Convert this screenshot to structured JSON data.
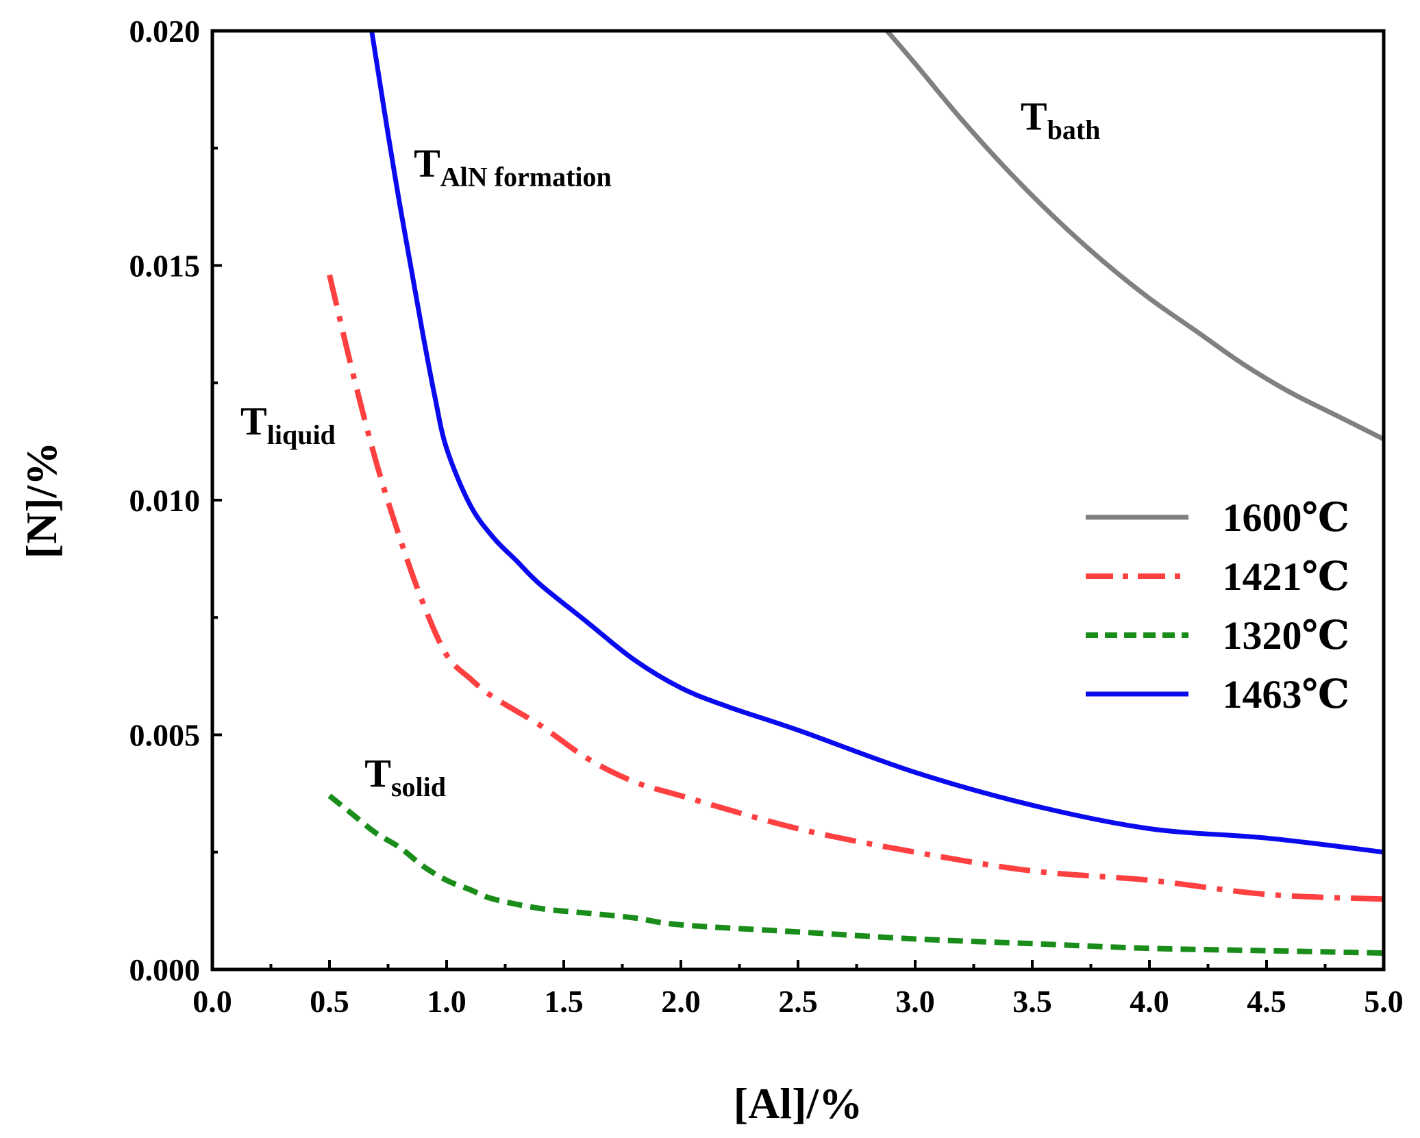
{
  "chart_data": {
    "type": "line",
    "xlabel": "[Al]/%",
    "ylabel": "[N]/%",
    "xlim": [
      0.0,
      5.0
    ],
    "ylim": [
      0.0,
      0.02
    ],
    "x_ticks": [
      "0.0",
      "0.5",
      "1.0",
      "1.5",
      "2.0",
      "2.5",
      "3.0",
      "3.5",
      "4.0",
      "4.5",
      "5.0"
    ],
    "y_ticks": [
      "0.000",
      "0.005",
      "0.010",
      "0.015",
      "0.020"
    ],
    "grid": false,
    "legend_position": "right",
    "series": [
      {
        "name": "1600℃",
        "color": "#808080",
        "style": "solid",
        "x": [
          2.88,
          3.0,
          3.2,
          3.4,
          3.6,
          3.8,
          4.0,
          4.2,
          4.4,
          4.6,
          4.8,
          5.0
        ],
        "y": [
          0.02,
          0.0193,
          0.0181,
          0.017,
          0.016,
          0.0151,
          0.0143,
          0.0136,
          0.0129,
          0.0123,
          0.0118,
          0.0113
        ]
      },
      {
        "name": "1421℃",
        "color": "#ff4040",
        "style": "dashdot",
        "x": [
          0.5,
          0.6,
          0.7,
          0.8,
          0.9,
          1.0,
          1.1,
          1.2,
          1.4,
          1.6,
          1.8,
          2.0,
          2.5,
          3.0,
          3.5,
          4.0,
          4.5,
          5.0
        ],
        "y": [
          0.0148,
          0.0127,
          0.0108,
          0.0092,
          0.0078,
          0.0067,
          0.0062,
          0.0058,
          0.0052,
          0.0045,
          0.004,
          0.0037,
          0.003,
          0.0025,
          0.0021,
          0.0019,
          0.0016,
          0.0015
        ]
      },
      {
        "name": "1320℃",
        "color": "#1a8c1a",
        "style": "dashed",
        "x": [
          0.5,
          0.6,
          0.7,
          0.8,
          0.9,
          1.0,
          1.1,
          1.2,
          1.4,
          1.6,
          1.8,
          2.0,
          2.5,
          3.0,
          3.5,
          4.0,
          4.5,
          5.0
        ],
        "y": [
          0.0037,
          0.0033,
          0.0029,
          0.0026,
          0.0022,
          0.0019,
          0.0017,
          0.0015,
          0.0013,
          0.0012,
          0.0011,
          0.00095,
          0.0008,
          0.00065,
          0.00055,
          0.00045,
          0.0004,
          0.00035
        ]
      },
      {
        "name": "1463℃",
        "color": "#0a0aee",
        "style": "solid",
        "x": [
          0.68,
          0.75,
          0.8,
          0.85,
          0.9,
          0.95,
          1.0,
          1.1,
          1.2,
          1.3,
          1.4,
          1.6,
          1.8,
          2.0,
          2.2,
          2.5,
          3.0,
          3.5,
          4.0,
          4.5,
          5.0
        ],
        "y": [
          0.02,
          0.0178,
          0.0163,
          0.0149,
          0.0135,
          0.0122,
          0.0111,
          0.0099,
          0.0092,
          0.0087,
          0.0082,
          0.0074,
          0.0066,
          0.006,
          0.0056,
          0.0051,
          0.0042,
          0.0035,
          0.003,
          0.0028,
          0.0025
        ]
      }
    ],
    "annotations": [
      {
        "id": "bath",
        "main": "T",
        "sub": "bath",
        "x": 3.45,
        "y": 0.0179
      },
      {
        "id": "aln",
        "main": "T",
        "sub": "AlN formation",
        "x": 0.86,
        "y": 0.0169
      },
      {
        "id": "liquid",
        "main": "T",
        "sub": "liquid",
        "x": 0.12,
        "y": 0.0114
      },
      {
        "id": "solid",
        "main": "T",
        "sub": "solid",
        "x": 0.65,
        "y": 0.0039
      }
    ]
  }
}
